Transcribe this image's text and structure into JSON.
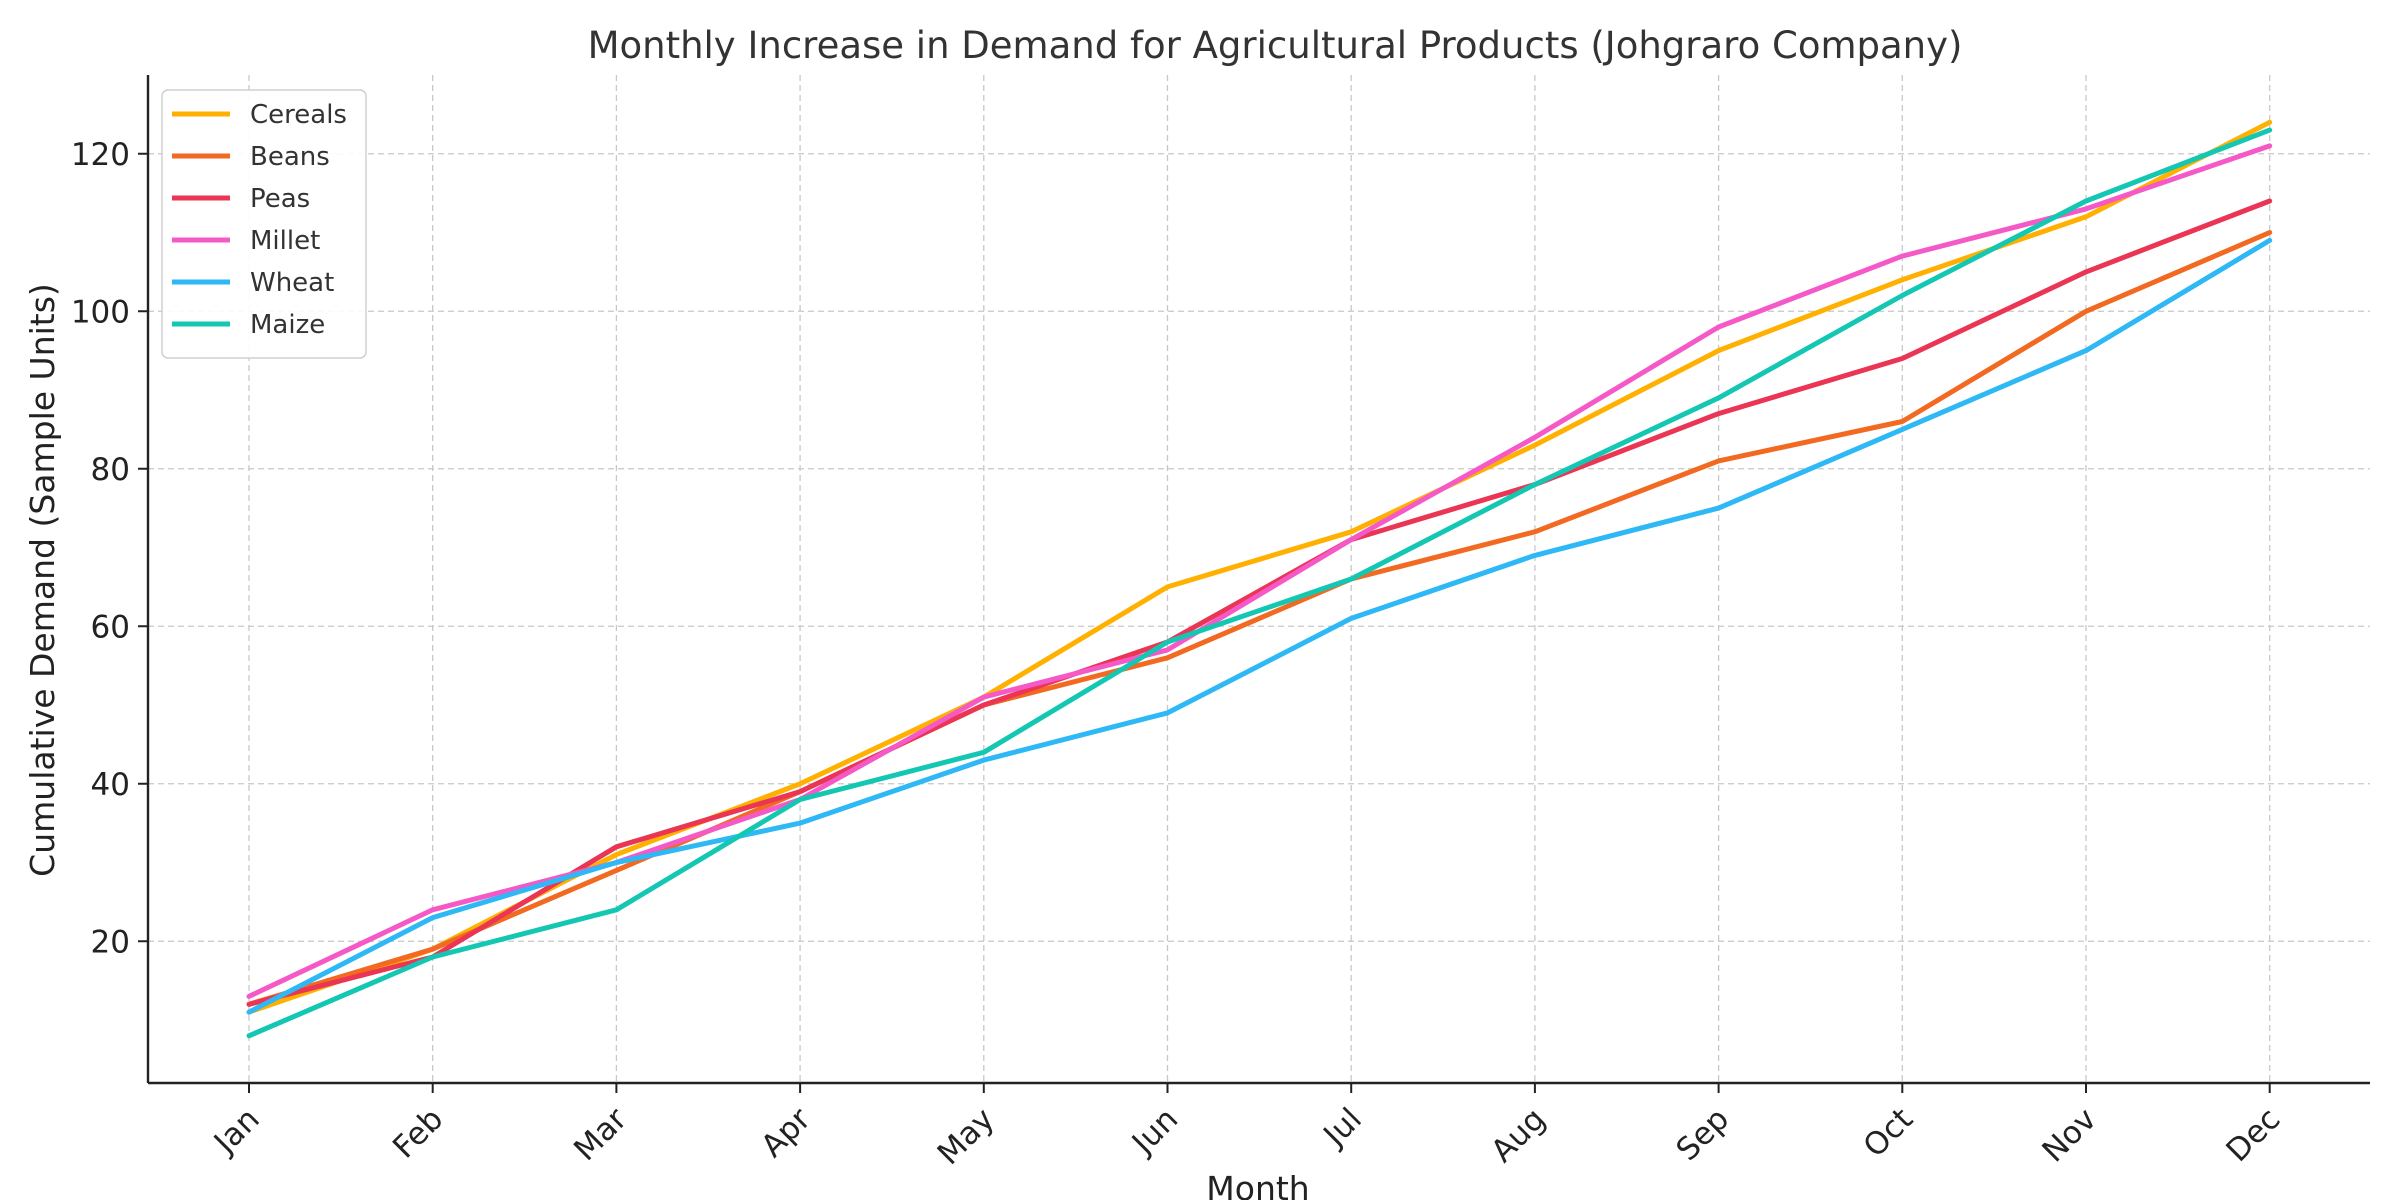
{
  "chart_data": {
    "type": "line",
    "title": "Monthly Increase in Demand for Agricultural Products (Johgraro Company)",
    "xlabel": "Month",
    "ylabel": "Cumulative Demand (Sample Units)",
    "categories": [
      "Jan",
      "Feb",
      "Mar",
      "Apr",
      "May",
      "Jun",
      "Jul",
      "Aug",
      "Sep",
      "Oct",
      "Nov",
      "Dec"
    ],
    "ylim": [
      2,
      130
    ],
    "yticks": [
      20,
      40,
      60,
      80,
      100,
      120
    ],
    "grid": true,
    "legend_position": "top-left",
    "series": [
      {
        "name": "Cereals",
        "color": "#FFB000",
        "values": [
          11,
          19,
          31,
          40,
          51,
          65,
          72,
          83,
          95,
          104,
          112,
          124
        ]
      },
      {
        "name": "Beans",
        "color": "#F26A21",
        "values": [
          12,
          19,
          29,
          39,
          50,
          56,
          66,
          72,
          81,
          86,
          100,
          110
        ]
      },
      {
        "name": "Peas",
        "color": "#EA3555",
        "values": [
          12,
          18,
          32,
          39,
          50,
          58,
          71,
          78,
          87,
          94,
          105,
          114
        ]
      },
      {
        "name": "Millet",
        "color": "#F559C8",
        "values": [
          13,
          24,
          30,
          38,
          51,
          57,
          71,
          84,
          98,
          107,
          113,
          121
        ]
      },
      {
        "name": "Wheat",
        "color": "#2EB8F5",
        "values": [
          11,
          23,
          30,
          35,
          43,
          49,
          61,
          69,
          75,
          85,
          95,
          109
        ]
      },
      {
        "name": "Maize",
        "color": "#13C7B3",
        "values": [
          8,
          18,
          24,
          38,
          44,
          58,
          66,
          78,
          89,
          102,
          114,
          123
        ]
      }
    ]
  }
}
